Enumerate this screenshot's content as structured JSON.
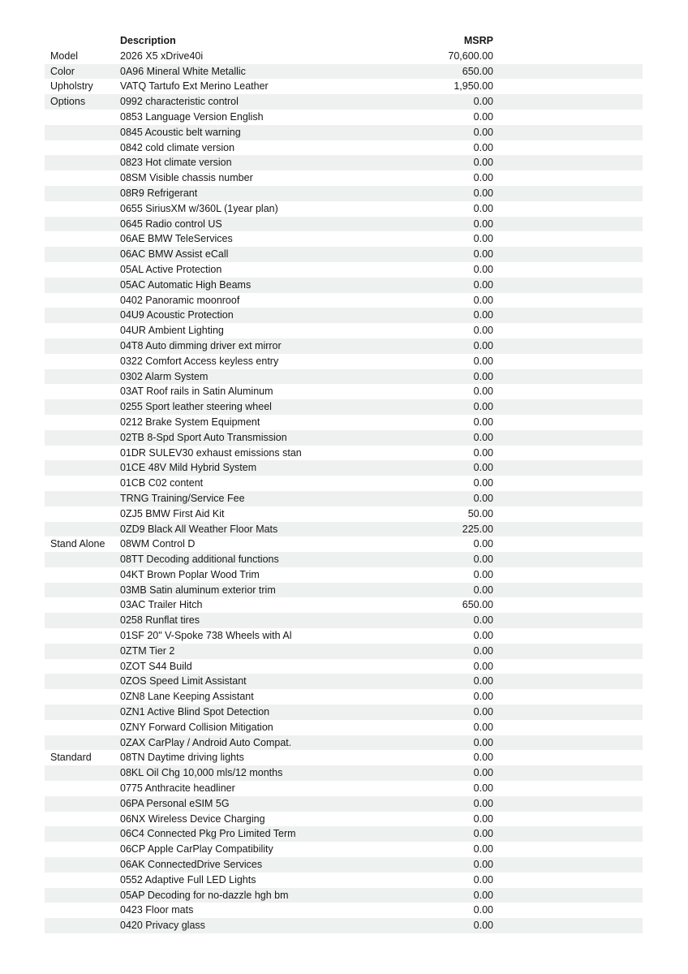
{
  "page": {
    "background": "#ffffff",
    "stripe_color": "#eff1f0",
    "text_color": "#161616"
  },
  "table": {
    "header": {
      "category": "",
      "description": "Description",
      "msrp": "MSRP"
    },
    "rows": [
      {
        "category": "Model",
        "description": "2026 X5 xDrive40i",
        "msrp": "70,600.00"
      },
      {
        "category": "Color",
        "description": "0A96 Mineral White Metallic",
        "msrp": "650.00"
      },
      {
        "category": "Upholstry",
        "description": "VATQ Tartufo Ext Merino Leather",
        "msrp": "1,950.00"
      },
      {
        "category": "Options",
        "description": "0992 characteristic control",
        "msrp": "0.00"
      },
      {
        "category": "",
        "description": "0853 Language Version English",
        "msrp": "0.00"
      },
      {
        "category": "",
        "description": "0845 Acoustic belt warning",
        "msrp": "0.00"
      },
      {
        "category": "",
        "description": "0842 cold climate version",
        "msrp": "0.00"
      },
      {
        "category": "",
        "description": "0823 Hot climate version",
        "msrp": "0.00"
      },
      {
        "category": "",
        "description": "08SM Visible chassis number",
        "msrp": "0.00"
      },
      {
        "category": "",
        "description": "08R9 Refrigerant",
        "msrp": "0.00"
      },
      {
        "category": "",
        "description": "0655 SiriusXM w/360L (1year plan)",
        "msrp": "0.00"
      },
      {
        "category": "",
        "description": "0645 Radio control US",
        "msrp": "0.00"
      },
      {
        "category": "",
        "description": "06AE BMW TeleServices",
        "msrp": "0.00"
      },
      {
        "category": "",
        "description": "06AC BMW Assist eCall",
        "msrp": "0.00"
      },
      {
        "category": "",
        "description": "05AL Active Protection",
        "msrp": "0.00"
      },
      {
        "category": "",
        "description": "05AC Automatic High Beams",
        "msrp": "0.00"
      },
      {
        "category": "",
        "description": "0402 Panoramic moonroof",
        "msrp": "0.00"
      },
      {
        "category": "",
        "description": "04U9 Acoustic Protection",
        "msrp": "0.00"
      },
      {
        "category": "",
        "description": "04UR Ambient Lighting",
        "msrp": "0.00"
      },
      {
        "category": "",
        "description": "04T8 Auto dimming driver ext mirror",
        "msrp": "0.00"
      },
      {
        "category": "",
        "description": "0322 Comfort Access keyless entry",
        "msrp": "0.00"
      },
      {
        "category": "",
        "description": "0302 Alarm System",
        "msrp": "0.00"
      },
      {
        "category": "",
        "description": "03AT Roof rails in Satin Aluminum",
        "msrp": "0.00"
      },
      {
        "category": "",
        "description": "0255 Sport leather steering wheel",
        "msrp": "0.00"
      },
      {
        "category": "",
        "description": "0212 Brake System Equipment",
        "msrp": "0.00"
      },
      {
        "category": "",
        "description": "02TB 8-Spd Sport Auto Transmission",
        "msrp": "0.00"
      },
      {
        "category": "",
        "description": "01DR SULEV30 exhaust emissions stan",
        "msrp": "0.00"
      },
      {
        "category": "",
        "description": "01CE 48V Mild Hybrid System",
        "msrp": "0.00"
      },
      {
        "category": "",
        "description": "01CB C02 content",
        "msrp": "0.00"
      },
      {
        "category": "",
        "description": "TRNG Training/Service Fee",
        "msrp": "0.00"
      },
      {
        "category": "",
        "description": "0ZJ5 BMW First Aid Kit",
        "msrp": "50.00"
      },
      {
        "category": "",
        "description": "0ZD9 Black All Weather Floor Mats",
        "msrp": "225.00"
      },
      {
        "category": "Stand Alone",
        "description": "08WM Control D",
        "msrp": "0.00"
      },
      {
        "category": "",
        "description": "08TT Decoding additional functions",
        "msrp": "0.00"
      },
      {
        "category": "",
        "description": "04KT Brown Poplar Wood Trim",
        "msrp": "0.00"
      },
      {
        "category": "",
        "description": "03MB Satin aluminum exterior trim",
        "msrp": "0.00"
      },
      {
        "category": "",
        "description": "03AC Trailer Hitch",
        "msrp": "650.00"
      },
      {
        "category": "",
        "description": "0258 Runflat tires",
        "msrp": "0.00"
      },
      {
        "category": "",
        "description": "01SF 20\" V-Spoke 738 Wheels with Al",
        "msrp": "0.00"
      },
      {
        "category": "",
        "description": "0ZTM Tier 2",
        "msrp": "0.00"
      },
      {
        "category": "",
        "description": "0ZOT S44 Build",
        "msrp": "0.00"
      },
      {
        "category": "",
        "description": "0ZOS Speed Limit Assistant",
        "msrp": "0.00"
      },
      {
        "category": "",
        "description": "0ZN8 Lane Keeping Assistant",
        "msrp": "0.00"
      },
      {
        "category": "",
        "description": "0ZN1 Active Blind Spot Detection",
        "msrp": "0.00"
      },
      {
        "category": "",
        "description": "0ZNY Forward Collision Mitigation",
        "msrp": "0.00"
      },
      {
        "category": "",
        "description": "0ZAX CarPlay / Android Auto Compat.",
        "msrp": "0.00"
      },
      {
        "category": "Standard",
        "description": "08TN Daytime driving lights",
        "msrp": "0.00"
      },
      {
        "category": "",
        "description": "08KL Oil Chg 10,000 mls/12 months",
        "msrp": "0.00"
      },
      {
        "category": "",
        "description": "0775 Anthracite headliner",
        "msrp": "0.00"
      },
      {
        "category": "",
        "description": "06PA Personal eSIM 5G",
        "msrp": "0.00"
      },
      {
        "category": "",
        "description": "06NX Wireless Device Charging",
        "msrp": "0.00"
      },
      {
        "category": "",
        "description": "06C4 Connected Pkg Pro Limited Term",
        "msrp": "0.00"
      },
      {
        "category": "",
        "description": "06CP Apple CarPlay Compatibility",
        "msrp": "0.00"
      },
      {
        "category": "",
        "description": "06AK ConnectedDrive Services",
        "msrp": "0.00"
      },
      {
        "category": "",
        "description": "0552 Adaptive Full LED Lights",
        "msrp": "0.00"
      },
      {
        "category": "",
        "description": "05AP Decoding for no-dazzle hgh bm",
        "msrp": "0.00"
      },
      {
        "category": "",
        "description": "0423 Floor mats",
        "msrp": "0.00"
      },
      {
        "category": "",
        "description": "0420 Privacy glass",
        "msrp": "0.00"
      }
    ]
  }
}
